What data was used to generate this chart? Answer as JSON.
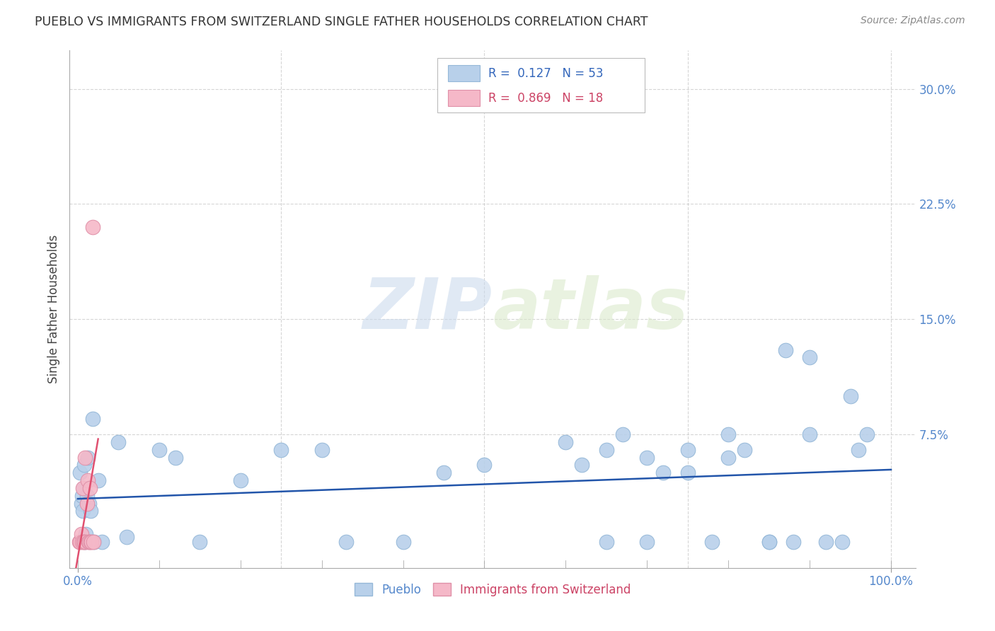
{
  "title": "PUEBLO VS IMMIGRANTS FROM SWITZERLAND SINGLE FATHER HOUSEHOLDS CORRELATION CHART",
  "source": "Source: ZipAtlas.com",
  "ylabel": "Single Father Households",
  "blue_color": "#b8d0ea",
  "blue_edge_color": "#95b8d8",
  "blue_line_color": "#2255aa",
  "pink_color": "#f5b8c8",
  "pink_edge_color": "#e090a8",
  "pink_line_color": "#e05070",
  "R_blue": 0.127,
  "N_blue": 53,
  "R_pink": 0.869,
  "N_pink": 18,
  "blue_x": [
    0.003,
    0.004,
    0.005,
    0.006,
    0.007,
    0.008,
    0.009,
    0.01,
    0.011,
    0.012,
    0.014,
    0.016,
    0.018,
    0.02,
    0.025,
    0.03,
    0.05,
    0.06,
    0.1,
    0.12,
    0.15,
    0.2,
    0.25,
    0.3,
    0.33,
    0.4,
    0.45,
    0.5,
    0.6,
    0.62,
    0.65,
    0.67,
    0.7,
    0.72,
    0.75,
    0.78,
    0.8,
    0.82,
    0.85,
    0.87,
    0.9,
    0.92,
    0.95,
    0.96,
    0.97,
    0.65,
    0.7,
    0.75,
    0.8,
    0.85,
    0.88,
    0.9,
    0.94
  ],
  "blue_y": [
    0.05,
    0.03,
    0.035,
    0.025,
    0.04,
    0.055,
    0.005,
    0.01,
    0.035,
    0.06,
    0.03,
    0.025,
    0.085,
    0.005,
    0.045,
    0.005,
    0.07,
    0.008,
    0.065,
    0.06,
    0.005,
    0.045,
    0.065,
    0.065,
    0.005,
    0.005,
    0.05,
    0.055,
    0.07,
    0.055,
    0.065,
    0.075,
    0.06,
    0.05,
    0.05,
    0.005,
    0.075,
    0.065,
    0.005,
    0.13,
    0.125,
    0.005,
    0.1,
    0.065,
    0.075,
    0.005,
    0.005,
    0.065,
    0.06,
    0.005,
    0.005,
    0.075,
    0.005
  ],
  "pink_x": [
    0.002,
    0.003,
    0.004,
    0.005,
    0.006,
    0.007,
    0.008,
    0.009,
    0.01,
    0.011,
    0.012,
    0.013,
    0.014,
    0.015,
    0.016,
    0.017,
    0.018,
    0.019
  ],
  "pink_y": [
    0.005,
    0.005,
    0.01,
    0.005,
    0.04,
    0.005,
    0.005,
    0.06,
    0.005,
    0.03,
    0.045,
    0.005,
    0.005,
    0.04,
    0.005,
    0.005,
    0.21,
    0.005
  ],
  "pink_line_x0": 0.0,
  "pink_line_x1": 0.022,
  "watermark_zip": "ZIP",
  "watermark_atlas": "atlas",
  "background_color": "#ffffff",
  "grid_color": "#cccccc",
  "grid_linestyle": "--",
  "yticks": [
    0.0,
    0.075,
    0.15,
    0.225,
    0.3
  ],
  "ytick_labels": [
    "",
    "7.5%",
    "15.0%",
    "22.5%",
    "30.0%"
  ],
  "minor_xticks": [
    0.0,
    0.1,
    0.2,
    0.3,
    0.4,
    0.5,
    0.6,
    0.7,
    0.8,
    0.9,
    1.0
  ],
  "grid_xticks": [
    0.25,
    0.5,
    0.75,
    1.0
  ],
  "ylim_min": -0.012,
  "ylim_max": 0.325,
  "xlim_min": -0.01,
  "xlim_max": 1.03
}
